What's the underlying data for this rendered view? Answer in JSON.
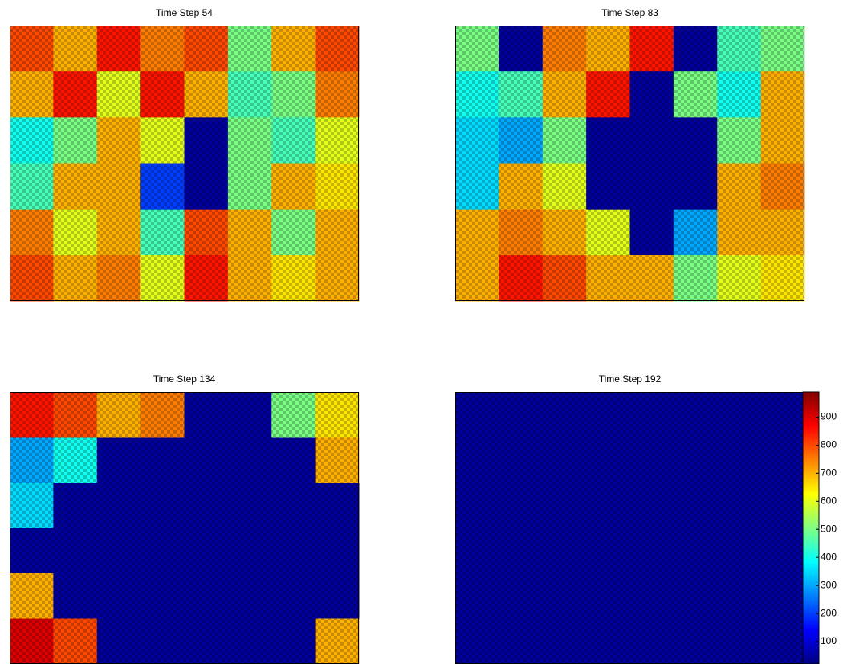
{
  "chart_data": [
    {
      "type": "heatmap",
      "title": "Time Step 54",
      "clim": [
        20,
        990
      ],
      "values": [
        [
          800,
          700,
          850,
          750,
          800,
          500,
          700,
          800
        ],
        [
          700,
          850,
          600,
          850,
          700,
          450,
          500,
          750
        ],
        [
          400,
          500,
          700,
          600,
          50,
          500,
          450,
          600
        ],
        [
          450,
          700,
          700,
          200,
          50,
          500,
          700,
          650
        ],
        [
          750,
          600,
          700,
          450,
          800,
          700,
          500,
          700
        ],
        [
          800,
          700,
          750,
          600,
          850,
          700,
          650,
          700
        ]
      ]
    },
    {
      "type": "heatmap",
      "title": "Time Step 83",
      "clim": [
        20,
        990
      ],
      "values": [
        [
          500,
          50,
          750,
          700,
          850,
          50,
          450,
          500
        ],
        [
          400,
          450,
          700,
          850,
          50,
          500,
          400,
          700
        ],
        [
          350,
          300,
          500,
          50,
          50,
          50,
          500,
          700
        ],
        [
          350,
          700,
          600,
          50,
          50,
          50,
          700,
          750
        ],
        [
          700,
          750,
          700,
          600,
          50,
          300,
          700,
          700
        ],
        [
          700,
          850,
          800,
          700,
          700,
          500,
          600,
          650
        ]
      ]
    },
    {
      "type": "heatmap",
      "title": "Time Step 134",
      "clim": [
        20,
        990
      ],
      "values": [
        [
          850,
          800,
          700,
          750,
          50,
          50,
          500,
          650
        ],
        [
          300,
          400,
          50,
          50,
          50,
          50,
          50,
          700
        ],
        [
          350,
          50,
          50,
          50,
          50,
          50,
          50,
          50
        ],
        [
          50,
          50,
          50,
          50,
          50,
          50,
          50,
          50
        ],
        [
          700,
          50,
          50,
          50,
          50,
          50,
          50,
          50
        ],
        [
          900,
          800,
          50,
          50,
          50,
          50,
          50,
          700
        ]
      ]
    },
    {
      "type": "heatmap",
      "title": "Time Step 192",
      "clim": [
        20,
        990
      ],
      "values": [
        [
          50,
          50,
          50,
          50,
          50,
          50,
          50,
          50
        ],
        [
          50,
          50,
          50,
          50,
          50,
          50,
          50,
          50
        ],
        [
          50,
          50,
          50,
          50,
          50,
          50,
          50,
          50
        ],
        [
          50,
          50,
          50,
          50,
          50,
          50,
          50,
          50
        ],
        [
          50,
          50,
          50,
          50,
          50,
          50,
          50,
          50
        ],
        [
          50,
          50,
          50,
          50,
          50,
          50,
          50,
          50
        ]
      ],
      "colorbar": true,
      "cticks": [
        100,
        200,
        300,
        400,
        500,
        600,
        700,
        800,
        900
      ]
    }
  ]
}
